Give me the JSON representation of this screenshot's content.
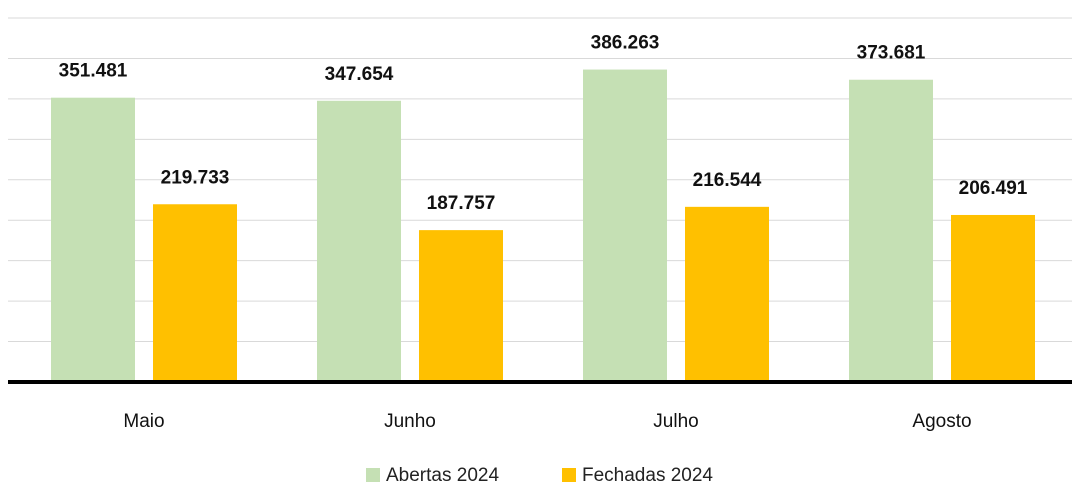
{
  "chart_data": {
    "type": "bar",
    "categories": [
      "Maio",
      "Junho",
      "Julho",
      "Agosto"
    ],
    "series": [
      {
        "name": "Abertas 2024",
        "color": "#c5e0b4",
        "values": [
          351481,
          347654,
          386263,
          373681
        ],
        "value_labels": [
          "351.481",
          "347.654",
          "386.263",
          "373.681"
        ]
      },
      {
        "name": "Fechadas 2024",
        "color": "#ffc000",
        "values": [
          219733,
          187757,
          216544,
          206491
        ],
        "value_labels": [
          "219.733",
          "187.757",
          "216.544",
          "206.491"
        ]
      }
    ],
    "ylim": [
      0,
      450000
    ],
    "yticks": [
      0,
      50000,
      100000,
      150000,
      200000,
      250000,
      300000,
      350000,
      400000,
      450000
    ],
    "grid": true
  }
}
